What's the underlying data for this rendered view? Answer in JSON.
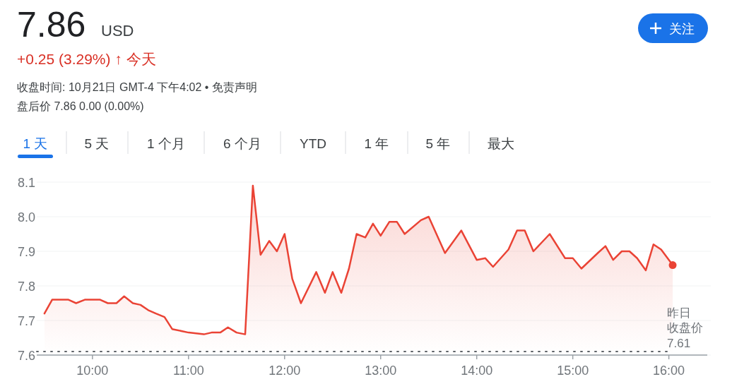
{
  "chart_data": {
    "type": "area",
    "title": "7.86",
    "subtitle": "+0.25 (3.29%) ↑ 今天",
    "annotations": [
      "USD",
      "收盘时间: 10月21日 GMT-4 下午4:02 • 免责声明",
      "盘后价 7.86 0.00 (0.00%)",
      "1 天",
      "5 天",
      "1 个月",
      "6 个月",
      "YTD",
      "1 年",
      "5 年",
      "最大",
      "关注"
    ],
    "x": [
      9.5,
      9.58,
      9.75,
      9.83,
      9.92,
      10.08,
      10.16,
      10.25,
      10.33,
      10.42,
      10.5,
      10.58,
      10.66,
      10.75,
      10.83,
      11.0,
      11.16,
      11.24,
      11.33,
      11.41,
      11.5,
      11.59,
      11.67,
      11.75,
      11.84,
      11.92,
      12.0,
      12.08,
      12.17,
      12.33,
      12.42,
      12.5,
      12.59,
      12.67,
      12.75,
      12.84,
      12.92,
      13.0,
      13.09,
      13.17,
      13.25,
      13.42,
      13.5,
      13.67,
      13.84,
      14.0,
      14.09,
      14.17,
      14.33,
      14.42,
      14.5,
      14.59,
      14.76,
      14.92,
      15.0,
      15.09,
      15.26,
      15.34,
      15.42,
      15.51,
      15.59,
      15.67,
      15.76,
      15.84,
      15.92,
      16.04
    ],
    "values": [
      7.72,
      7.76,
      7.76,
      7.75,
      7.76,
      7.76,
      7.75,
      7.75,
      7.77,
      7.75,
      7.745,
      7.73,
      7.72,
      7.71,
      7.675,
      7.665,
      7.66,
      7.665,
      7.665,
      7.68,
      7.665,
      7.66,
      8.09,
      7.89,
      7.93,
      7.9,
      7.95,
      7.82,
      7.75,
      7.84,
      7.78,
      7.84,
      7.78,
      7.85,
      7.95,
      7.94,
      7.98,
      7.945,
      7.985,
      7.985,
      7.95,
      7.99,
      8.0,
      7.895,
      7.96,
      7.875,
      7.88,
      7.855,
      7.905,
      7.96,
      7.96,
      7.9,
      7.95,
      7.88,
      7.88,
      7.85,
      7.895,
      7.915,
      7.875,
      7.9,
      7.9,
      7.88,
      7.845,
      7.92,
      7.905,
      7.86
    ],
    "color": "#ea4335",
    "xlim": [
      9.42,
      16.4
    ],
    "ylim": [
      7.6,
      8.1
    ],
    "xticks": [
      {
        "value": 10,
        "label": "10:00"
      },
      {
        "value": 11,
        "label": "11:00"
      },
      {
        "value": 12,
        "label": "12:00"
      },
      {
        "value": 13,
        "label": "13:00"
      },
      {
        "value": 14,
        "label": "14:00"
      },
      {
        "value": 15,
        "label": "15:00"
      },
      {
        "value": 16,
        "label": "16:00"
      }
    ],
    "yticks": [
      {
        "value": 7.6,
        "label": "7.6"
      },
      {
        "value": 7.7,
        "label": "7.7"
      },
      {
        "value": 7.8,
        "label": "7.8"
      },
      {
        "value": 7.9,
        "label": "7.9"
      },
      {
        "value": 8.0,
        "label": "8.0"
      },
      {
        "value": 8.1,
        "label": "8.1"
      }
    ],
    "grid": "y",
    "ref_lines": [
      {
        "axis": "y",
        "value": 7.61,
        "label": "昨日收盘价7.61",
        "line_style": "dotted",
        "color": "#5f6368"
      }
    ]
  }
}
